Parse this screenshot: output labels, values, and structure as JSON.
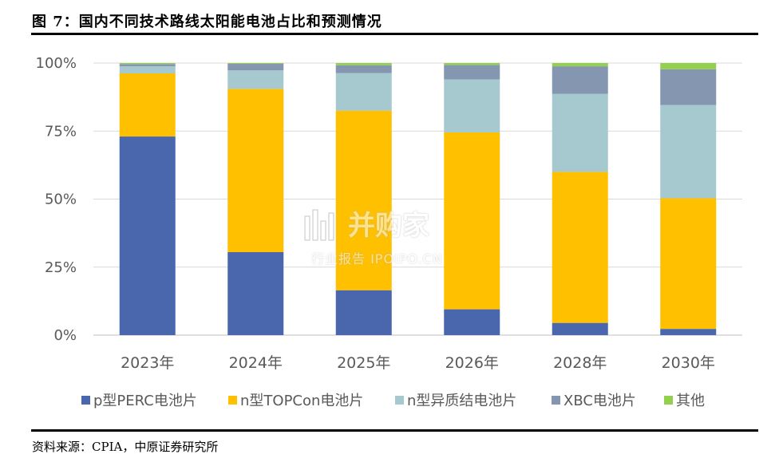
{
  "figure": {
    "title": "图 7：国内不同技术路线太阳能电池占比和预测情况",
    "source": "资料来源：CPIA，中原证券研究所"
  },
  "watermark": {
    "brand": "并购家",
    "subtitle": "行业报告 IPOIPO.CN"
  },
  "chart_data": {
    "type": "bar",
    "stacked": true,
    "title": "",
    "xlabel": "",
    "ylabel": "",
    "categories": [
      "2023年",
      "2024年",
      "2025年",
      "2026年",
      "2028年",
      "2030年"
    ],
    "yticks": [
      "0%",
      "25%",
      "50%",
      "75%",
      "100%"
    ],
    "ylim": [
      0,
      100
    ],
    "legend_position": "bottom",
    "grid": true,
    "series": [
      {
        "name": "p型PERC电池片",
        "color": "#4a67ad",
        "values": [
          73.0,
          30.5,
          16.5,
          9.5,
          4.5,
          2.3
        ]
      },
      {
        "name": "n型TOPCon电池片",
        "color": "#ffc000",
        "values": [
          23.2,
          60.0,
          66.0,
          65.0,
          55.5,
          48.0
        ]
      },
      {
        "name": "n型异质结电池片",
        "color": "#a5c9ce",
        "values": [
          2.6,
          6.8,
          13.8,
          19.5,
          28.7,
          34.3
        ]
      },
      {
        "name": "XBC电池片",
        "color": "#8496b0",
        "values": [
          0.8,
          2.4,
          2.9,
          5.3,
          10.1,
          13.1
        ]
      },
      {
        "name": "其他",
        "color": "#92d050",
        "values": [
          0.4,
          0.3,
          0.8,
          0.7,
          1.2,
          2.3
        ]
      }
    ]
  }
}
